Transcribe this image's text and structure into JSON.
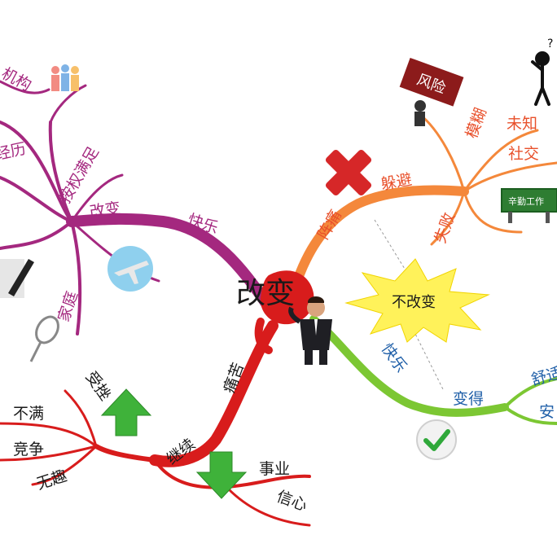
{
  "center": {
    "label": "改变"
  },
  "branches": {
    "top_left": {
      "main": "快乐",
      "hub": "改变",
      "items": [
        "机构",
        "经历",
        "按权满足",
        "家庭"
      ]
    },
    "top_right": {
      "main": "阵痛",
      "hub": "躲避",
      "items": [
        "模糊",
        "未知",
        "社交",
        "失败"
      ],
      "sign_text": "辛勤工作",
      "risk_text": "风险"
    },
    "bottom_left": {
      "main": "痛苦",
      "hub": "继续",
      "left_items": [
        "受挫",
        "不满",
        "竞争",
        "无趣"
      ],
      "right_items": [
        "事业",
        "信心"
      ]
    },
    "bottom_right": {
      "main": "快乐",
      "hub": "变得",
      "items": [
        "舒适",
        "安"
      ]
    },
    "burst": {
      "label": "不改变"
    }
  },
  "colors": {
    "purple": "#a4287f",
    "orange": "#f4883b",
    "red": "#d81c1c",
    "green": "#7cc733",
    "burst": "#fff25a",
    "arrow_green": "#3fb23a"
  }
}
